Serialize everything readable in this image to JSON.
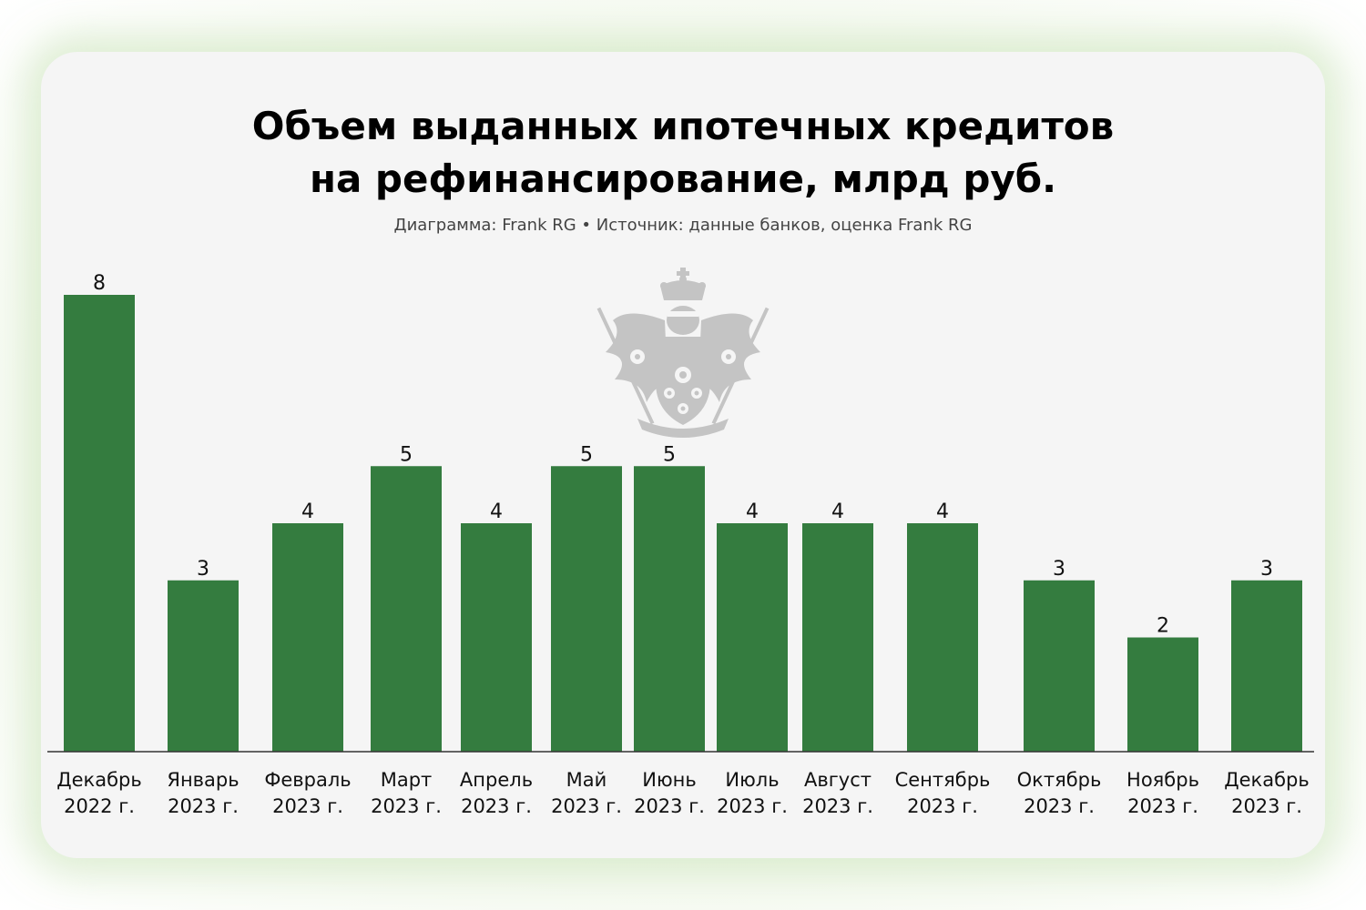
{
  "chart_data": {
    "type": "bar",
    "title_line1": "Объем выданных ипотечных кредитов",
    "title_line2": "на рефинансирование, млрд руб.",
    "subtitle": "Диаграмма: Frank RG • Источник: данные банков, оценка  Frank RG",
    "categories": [
      [
        "Декабрь",
        "2022 г."
      ],
      [
        "Январь",
        "2023 г."
      ],
      [
        "Февраль",
        "2023 г."
      ],
      [
        "Март",
        "2023 г."
      ],
      [
        "Апрель",
        "2023 г."
      ],
      [
        "Май",
        "2023 г."
      ],
      [
        "Июнь",
        "2023 г."
      ],
      [
        "Июль",
        "2023 г."
      ],
      [
        "Август",
        "2023 г."
      ],
      [
        "Сентябрь",
        "2023 г."
      ],
      [
        "Октябрь",
        "2023 г."
      ],
      [
        "Ноябрь",
        "2023 г."
      ],
      [
        "Декабрь",
        "2023 г."
      ]
    ],
    "values": [
      8,
      3,
      4,
      5,
      4,
      5,
      5,
      4,
      4,
      4,
      3,
      2,
      3
    ],
    "value_labels": [
      "8",
      "3",
      "4",
      "5",
      "4",
      "5",
      "5",
      "4",
      "4",
      "4",
      "3",
      "2",
      "3"
    ],
    "bar_color": "#347c3f",
    "xlabel": "",
    "ylabel": "",
    "ylim": [
      0,
      8
    ],
    "grid": false,
    "legend": "none"
  },
  "watermark": {
    "icon": "coat-of-arms-icon",
    "color": "#c4c4c4"
  }
}
